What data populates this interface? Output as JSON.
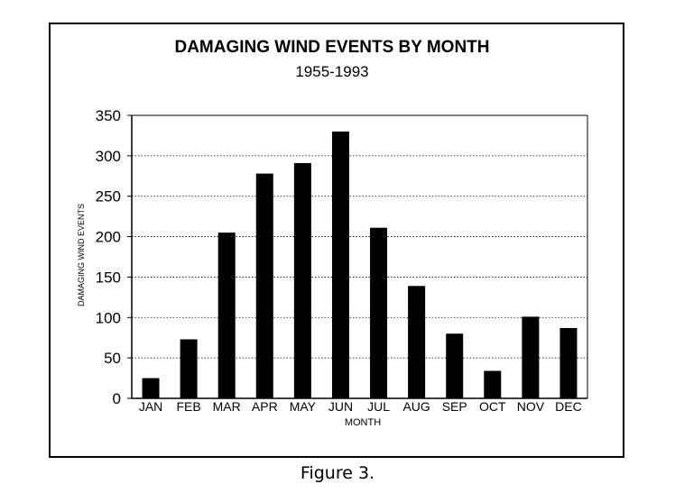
{
  "chart_data": {
    "type": "bar",
    "title": "DAMAGING WIND EVENTS BY MONTH",
    "subtitle": "1955-1993",
    "xlabel": "MONTH",
    "ylabel": "DAMAGING WIND EVENTS",
    "categories": [
      "JAN",
      "FEB",
      "MAR",
      "APR",
      "MAY",
      "JUN",
      "JUL",
      "AUG",
      "SEP",
      "OCT",
      "NOV",
      "DEC"
    ],
    "values": [
      25,
      73,
      205,
      278,
      291,
      330,
      211,
      139,
      80,
      34,
      101,
      87
    ],
    "ylim": [
      0,
      350
    ],
    "yticks": [
      0,
      50,
      100,
      150,
      200,
      250,
      300,
      350
    ],
    "grid": true,
    "bar_color": "#000000",
    "legend": "none"
  },
  "caption": "Figure 3."
}
